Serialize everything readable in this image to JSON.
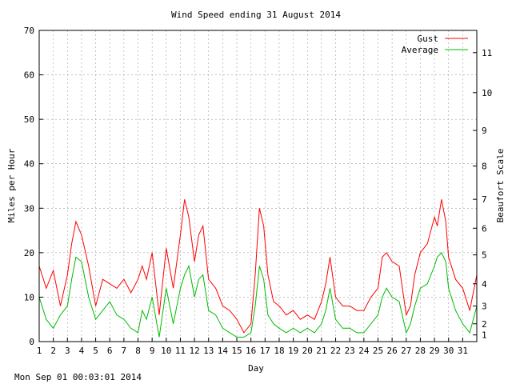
{
  "footer": {
    "timestamp": "Mon Sep 01 00:03:01 2014"
  },
  "chart_data": {
    "type": "line",
    "title": "Wind Speed ending 31 August 2014",
    "xlabel": "Day",
    "ylabel": "Miles per Hour",
    "y2label": "Beaufort Scale",
    "xlim": [
      1,
      32
    ],
    "ylim": [
      0,
      70
    ],
    "x_ticks": [
      "1",
      "2",
      "3",
      "4",
      "5",
      "6",
      "7",
      "8",
      "9",
      "10",
      "11",
      "12",
      "13",
      "14",
      "15",
      "16",
      "17",
      "18",
      "19",
      "20",
      "21",
      "22",
      "23",
      "24",
      "25",
      "26",
      "27",
      "28",
      "29",
      "30",
      "31"
    ],
    "y_ticks": [
      0,
      10,
      20,
      30,
      40,
      50,
      60,
      70
    ],
    "beaufort_ticks": [
      {
        "label": "1",
        "mph": 1.5
      },
      {
        "label": "2",
        "mph": 4
      },
      {
        "label": "3",
        "mph": 8
      },
      {
        "label": "4",
        "mph": 13
      },
      {
        "label": "5",
        "mph": 19.5
      },
      {
        "label": "6",
        "mph": 25.5
      },
      {
        "label": "7",
        "mph": 32
      },
      {
        "label": "8",
        "mph": 39.5
      },
      {
        "label": "9",
        "mph": 47.5
      },
      {
        "label": "10",
        "mph": 56
      },
      {
        "label": "11",
        "mph": 65
      }
    ],
    "grid": true,
    "legend_position": "top-right",
    "series": [
      {
        "name": "Gust",
        "color": "#ff0000",
        "x": [
          1,
          1.5,
          2,
          2.5,
          3,
          3.3,
          3.6,
          4,
          4.5,
          5,
          5.5,
          6,
          6.5,
          7,
          7.5,
          8,
          8.3,
          8.6,
          9,
          9.5,
          10,
          10.5,
          11,
          11.3,
          11.6,
          12,
          12.3,
          12.6,
          13,
          13.5,
          14,
          14.5,
          15,
          15.5,
          16,
          16.3,
          16.6,
          16.9,
          17.2,
          17.6,
          18,
          18.5,
          19,
          19.5,
          20,
          20.5,
          21,
          21.3,
          21.6,
          22,
          22.5,
          23,
          23.5,
          24,
          24.5,
          25,
          25.3,
          25.6,
          26,
          26.5,
          27,
          27.3,
          27.6,
          28,
          28.5,
          29,
          29.2,
          29.5,
          29.8,
          30,
          30.5,
          31,
          31.5,
          32
        ],
        "values": [
          17,
          12,
          16,
          8,
          15,
          22,
          27,
          24,
          17,
          8,
          14,
          13,
          12,
          14,
          11,
          14,
          17,
          14,
          20,
          6,
          21,
          12,
          24,
          32,
          28,
          18,
          24,
          26,
          14,
          12,
          8,
          7,
          5,
          2,
          4,
          15,
          30,
          26,
          15,
          9,
          8,
          6,
          7,
          5,
          6,
          5,
          9,
          13,
          19,
          10,
          8,
          8,
          7,
          7,
          10,
          12,
          19,
          20,
          18,
          17,
          6,
          8,
          15,
          20,
          22,
          28,
          26,
          32,
          27,
          19,
          14,
          12,
          7,
          15
        ]
      },
      {
        "name": "Average",
        "color": "#00bb00",
        "x": [
          1,
          1.5,
          2,
          2.5,
          3,
          3.3,
          3.6,
          4,
          4.5,
          5,
          5.5,
          6,
          6.5,
          7,
          7.5,
          8,
          8.3,
          8.6,
          9,
          9.5,
          10,
          10.5,
          11,
          11.3,
          11.6,
          12,
          12.3,
          12.6,
          13,
          13.5,
          14,
          14.5,
          15,
          15.5,
          16,
          16.3,
          16.6,
          16.9,
          17.2,
          17.6,
          18,
          18.5,
          19,
          19.5,
          20,
          20.5,
          21,
          21.3,
          21.6,
          22,
          22.5,
          23,
          23.5,
          24,
          24.5,
          25,
          25.3,
          25.6,
          26,
          26.5,
          27,
          27.3,
          27.6,
          28,
          28.5,
          29,
          29.2,
          29.5,
          29.8,
          30,
          30.5,
          31,
          31.5,
          32
        ],
        "values": [
          10,
          5,
          3,
          6,
          8,
          14,
          19,
          18,
          10,
          5,
          7,
          9,
          6,
          5,
          3,
          2,
          7,
          5,
          10,
          1,
          12,
          4,
          12,
          15,
          17,
          10,
          14,
          15,
          7,
          6,
          3,
          2,
          1,
          1,
          2,
          8,
          17,
          14,
          6,
          4,
          3,
          2,
          3,
          2,
          3,
          2,
          4,
          7,
          12,
          5,
          3,
          3,
          2,
          2,
          4,
          6,
          10,
          12,
          10,
          9,
          2,
          4,
          8,
          12,
          13,
          17,
          19,
          20,
          18,
          12,
          7,
          4,
          2,
          8
        ]
      }
    ]
  }
}
